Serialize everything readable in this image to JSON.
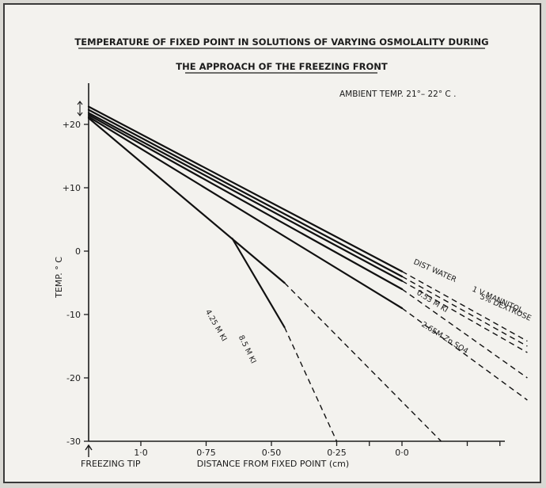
{
  "chart_data": {
    "type": "line",
    "title_line1": "TEMPERATURE OF FIXED POINT IN SOLUTIONS OF VARYING OSMOLALITY DURING",
    "title_line2": "THE APPROACH OF THE FREEZING FRONT",
    "annotation": "AMBIENT TEMP. 21°– 22° C .",
    "ylabel": "TEMP. ° C",
    "xlabel": "DISTANCE   FROM  FIXED  POINT (cm)",
    "x_origin_label": "FREEZING TIP",
    "ylim": [
      -30,
      26
    ],
    "xlim": [
      1.2,
      -0.5
    ],
    "yticks": [
      {
        "value": 20,
        "label": "+20"
      },
      {
        "value": 10,
        "label": "+10"
      },
      {
        "value": 0,
        "label": "0"
      },
      {
        "value": -10,
        "label": "-10"
      },
      {
        "value": -20,
        "label": "-20"
      },
      {
        "value": -30,
        "label": "-30"
      }
    ],
    "xticks": [
      {
        "value": 1.0,
        "label": "1·0"
      },
      {
        "value": 0.75,
        "label": "0·75"
      },
      {
        "value": 0.5,
        "label": "0·50"
      },
      {
        "value": 0.25,
        "label": "0·25"
      },
      {
        "value": 0.0,
        "label": "0·0"
      }
    ],
    "series": [
      {
        "name": "DIST WATER",
        "solid": [
          [
            1.2,
            22.8
          ],
          [
            0.0,
            -3.2
          ]
        ],
        "dashed": [
          [
            0.0,
            -3.2
          ],
          [
            -0.48,
            -14.2
          ]
        ]
      },
      {
        "name": "1 V MANNITOL",
        "solid": [
          [
            1.2,
            22.3
          ],
          [
            0.0,
            -4.0
          ]
        ],
        "dashed": [
          [
            0.0,
            -4.0
          ],
          [
            -0.48,
            -15.0
          ]
        ]
      },
      {
        "name": "5% DEXTROSE",
        "solid": [
          [
            1.2,
            21.8
          ],
          [
            0.0,
            -4.7
          ]
        ],
        "dashed": [
          [
            0.0,
            -4.7
          ],
          [
            -0.48,
            -16.0
          ]
        ]
      },
      {
        "name": "0.53 M KI",
        "solid": [
          [
            1.2,
            21.5
          ],
          [
            0.0,
            -6.0
          ]
        ],
        "dashed": [
          [
            0.0,
            -6.0
          ],
          [
            -0.48,
            -20.0
          ]
        ]
      },
      {
        "name": "2.65M Zn SO4",
        "solid": [
          [
            1.2,
            21.2
          ],
          [
            0.0,
            -9.0
          ]
        ],
        "dashed": [
          [
            0.0,
            -9.0
          ],
          [
            -0.48,
            -23.5
          ]
        ]
      },
      {
        "name": "4.25 M KI",
        "solid": [
          [
            1.2,
            21.0
          ],
          [
            0.45,
            -5.0
          ]
        ],
        "dashed": [
          [
            0.45,
            -5.0
          ],
          [
            -0.15,
            -30.0
          ]
        ]
      },
      {
        "name": "8.5 M KI",
        "solid": [
          [
            0.65,
            2.0
          ],
          [
            0.45,
            -12.0
          ]
        ],
        "dashed": [
          [
            0.45,
            -12.0
          ],
          [
            0.25,
            -30.0
          ]
        ]
      }
    ]
  }
}
